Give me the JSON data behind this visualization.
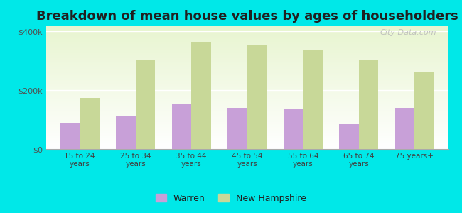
{
  "title": "Breakdown of mean house values by ages of householders",
  "categories": [
    "15 to 24\nyears",
    "25 to 34\nyears",
    "35 to 44\nyears",
    "45 to 54\nyears",
    "55 to 64\nyears",
    "65 to 74\nyears",
    "75 years+"
  ],
  "warren_values": [
    90000,
    110000,
    155000,
    140000,
    137000,
    85000,
    140000
  ],
  "nh_values": [
    175000,
    305000,
    365000,
    355000,
    335000,
    305000,
    262000
  ],
  "warren_color": "#c8a0d8",
  "nh_color": "#c8d898",
  "background_color": "#00e8e8",
  "ylim": [
    0,
    420000
  ],
  "yticks": [
    0,
    200000,
    400000
  ],
  "ytick_labels": [
    "$0",
    "$200k",
    "$400k"
  ],
  "legend_labels": [
    "Warren",
    "New Hampshire"
  ],
  "bar_width": 0.35,
  "title_fontsize": 13,
  "watermark": "City-Data.com"
}
